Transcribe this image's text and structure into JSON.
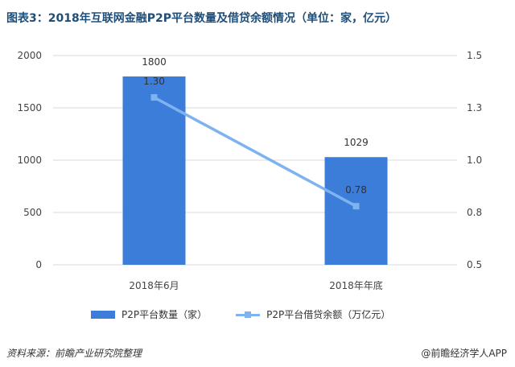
{
  "title": "图表3：2018年互联网金融P2P平台数量及借贷余额情况（单位：家，亿元）",
  "chart_data": {
    "type": "bar",
    "categories": [
      "2018年6月",
      "2018年年底"
    ],
    "series": [
      {
        "name": "P2P平台数量（家）",
        "type": "bar",
        "axis": "left",
        "values": [
          1800,
          1029
        ],
        "color": "#3b7dd8"
      },
      {
        "name": "P2P平台借贷余额（万亿元）",
        "type": "line",
        "axis": "right",
        "values": [
          1.3,
          0.78
        ],
        "color": "#7fb3ef"
      }
    ],
    "bar_labels": [
      "1800",
      "1029"
    ],
    "line_labels": [
      "1.30",
      "0.78"
    ],
    "y_left": {
      "ylim": [
        0,
        2000
      ],
      "ticks": [
        "0",
        "500",
        "1000",
        "1500",
        "2000"
      ]
    },
    "y_right": {
      "ylim": [
        0.5,
        1.5
      ],
      "ticks": [
        "0.5",
        "0.8",
        "1.0",
        "1.3",
        "1.5"
      ]
    },
    "grid": true,
    "legend_position": "bottom"
  },
  "legend": {
    "bar": "P2P平台数量（家）",
    "line": "P2P平台借贷余额（万亿元）"
  },
  "footer": {
    "source": "资料来源：前瞻产业研究院整理",
    "brand": "@前瞻经济学人APP"
  }
}
